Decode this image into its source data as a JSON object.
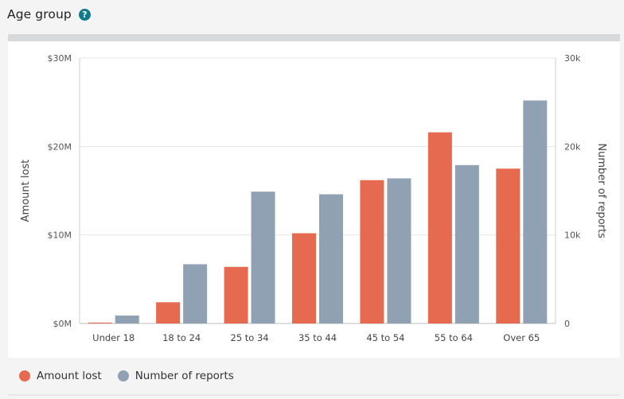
{
  "header": {
    "title": "Age group",
    "help_icon": "?"
  },
  "colors": {
    "amount": "#e66a50",
    "reports": "#91a1b4",
    "help": "#0f7a8c"
  },
  "chart_data": {
    "type": "bar",
    "categories": [
      "Under 18",
      "18 to 24",
      "25 to 34",
      "35 to 44",
      "45 to 54",
      "55 to 64",
      "Over 65"
    ],
    "series": [
      {
        "name": "Amount lost",
        "axis": "left",
        "values": [
          0.1,
          2.4,
          6.4,
          10.2,
          16.2,
          21.6,
          17.5
        ]
      },
      {
        "name": "Number of reports",
        "axis": "right",
        "values": [
          0.9,
          6.7,
          14.9,
          14.6,
          16.4,
          17.9,
          25.2
        ]
      }
    ],
    "ylabel": "Amount lost",
    "y2label": "Number of reports",
    "ylim": [
      0,
      30
    ],
    "y2lim": [
      0,
      30
    ],
    "y_ticks": [
      "$0M",
      "$10M",
      "$20M",
      "$30M"
    ],
    "y2_ticks": [
      "0",
      "10k",
      "20k",
      "30k"
    ],
    "grid": true,
    "legend_position": "bottom-left"
  },
  "legend": [
    {
      "label": "Amount lost"
    },
    {
      "label": "Number of reports"
    }
  ]
}
